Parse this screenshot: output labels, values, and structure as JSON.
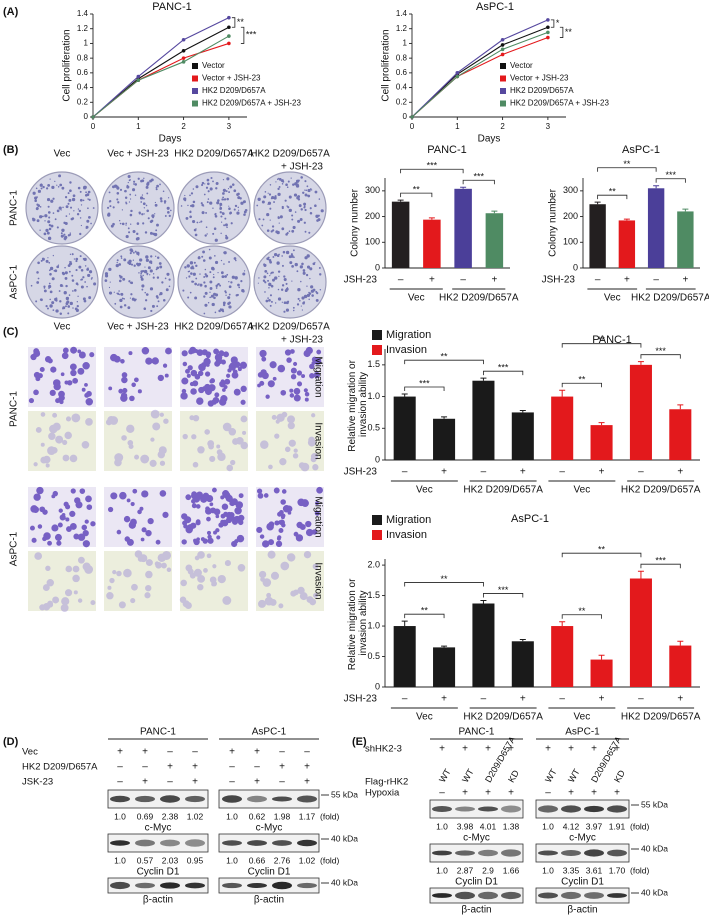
{
  "figure": {
    "panel_labels": [
      "(A)",
      "(B)",
      "(C)",
      "(D)",
      "(E)"
    ],
    "colony": {
      "columns": [
        [
          "Vec"
        ],
        [
          "Vec + JSH-23"
        ],
        [
          "HK2 D209/D657A"
        ],
        [
          "HK2 D209/D657A",
          "+ JSH-23"
        ]
      ],
      "rows": [
        "PANC-1",
        "AsPC-1"
      ]
    },
    "transwell": {
      "columns": [
        [
          "Vec"
        ],
        [
          "Vec + JSH-23"
        ],
        [
          "HK2 D209/D657A"
        ],
        [
          "HK2 D209/D657A",
          "+ JSH-23"
        ]
      ],
      "cell_lines": [
        "PANC-1",
        "AsPC-1"
      ],
      "assays": [
        "Migration",
        "Invasion"
      ]
    },
    "blot_d": {
      "cell_lines": [
        "PANC-1",
        "AsPC-1"
      ],
      "conditions": [
        {
          "label": "Vec",
          "signs": [
            "+",
            "+",
            "–",
            "–",
            "+",
            "+",
            "–",
            "–"
          ]
        },
        {
          "label": "HK2 D209/D657A",
          "signs": [
            "–",
            "–",
            "+",
            "+",
            "–",
            "–",
            "+",
            "+"
          ]
        },
        {
          "label": "JSK-23",
          "signs": [
            "–",
            "+",
            "–",
            "+",
            "–",
            "+",
            "–",
            "+"
          ]
        }
      ],
      "blots": [
        {
          "protein": "c-Myc",
          "marker": "55 kDa",
          "fold": [
            [
              "1.0",
              "0.69",
              "2.38",
              "1.02"
            ],
            [
              "1.0",
              "0.62",
              "1.98",
              "1.17"
            ]
          ]
        },
        {
          "protein": "Cyclin D1",
          "marker": "40 kDa",
          "fold": [
            [
              "1.0",
              "0.57",
              "2.03",
              "0.95"
            ],
            [
              "1.0",
              "0.66",
              "2.76",
              "1.02"
            ]
          ]
        },
        {
          "protein": "β-actin",
          "marker": "40 kDa"
        }
      ],
      "fold_unit": "(fold)"
    },
    "blot_e": {
      "cell_lines": [
        "PANC-1",
        "AsPC-1"
      ],
      "conditions": [
        {
          "label": "shHK2-3",
          "signs": [
            "+",
            "+",
            "+",
            "+",
            "+",
            "+",
            "+",
            "+"
          ]
        },
        {
          "label": "Flag-rHK2",
          "signs": [
            "WT",
            "WT",
            "D209/D657A",
            "KD",
            "WT",
            "WT",
            "D209/D657A",
            "KD"
          ]
        },
        {
          "label": "Hypoxia",
          "signs": [
            "–",
            "+",
            "+",
            "+",
            "–",
            "+",
            "+",
            "+"
          ]
        }
      ],
      "blots": [
        {
          "protein": "c-Myc",
          "marker": "55 kDa",
          "fold": [
            [
              "1.0",
              "3.98",
              "4.01",
              "1.38"
            ],
            [
              "1.0",
              "4.12",
              "3.97",
              "1.91"
            ]
          ]
        },
        {
          "protein": "Cyclin D1",
          "marker": "40 kDa",
          "fold": [
            [
              "1.0",
              "2.87",
              "2.9",
              "1.66"
            ],
            [
              "1.0",
              "3.35",
              "3.61",
              "1.70"
            ]
          ]
        },
        {
          "protein": "β-actin",
          "marker": "40 kDa"
        }
      ],
      "fold_unit": "(fold)"
    }
  },
  "chart_data": [
    {
      "type": "line",
      "title": "PANC-1",
      "x_label": "Days",
      "y_label": "Cell proliferation",
      "x": [
        0,
        1,
        2,
        3
      ],
      "xlim": [
        0,
        3.4
      ],
      "xticks": [
        0,
        1,
        2,
        3
      ],
      "ylim": [
        0,
        1.4
      ],
      "yticks": [
        0,
        0.2,
        0.4,
        0.6,
        0.8,
        1,
        1.2,
        1.4
      ],
      "series": [
        {
          "name": "Vector",
          "color": "#111111",
          "values": [
            0,
            0.52,
            0.9,
            1.22
          ]
        },
        {
          "name": "Vector + JSH-23",
          "color": "#e3191c",
          "values": [
            0,
            0.5,
            0.8,
            1.0
          ]
        },
        {
          "name": "HK2 D209/D657A",
          "color": "#56489f",
          "values": [
            0,
            0.55,
            1.05,
            1.35
          ]
        },
        {
          "name": "HK2 D209/D657A + JSH-23",
          "color": "#4f8b63",
          "values": [
            0,
            0.5,
            0.75,
            1.1
          ]
        }
      ],
      "annotations": [
        "**",
        "***"
      ]
    },
    {
      "type": "line",
      "title": "AsPC-1",
      "x_label": "Days",
      "y_label": "Cell proliferation",
      "x": [
        0,
        1,
        2,
        3
      ],
      "xlim": [
        0,
        3.4
      ],
      "xticks": [
        0,
        1,
        2,
        3
      ],
      "ylim": [
        0,
        1.4
      ],
      "yticks": [
        0,
        0.2,
        0.4,
        0.6,
        0.8,
        1,
        1.2,
        1.4
      ],
      "series": [
        {
          "name": "Vector",
          "color": "#111111",
          "values": [
            0,
            0.58,
            0.98,
            1.22
          ]
        },
        {
          "name": "Vector + JSH-23",
          "color": "#e3191c",
          "values": [
            0,
            0.55,
            0.85,
            1.08
          ]
        },
        {
          "name": "HK2 D209/D657A",
          "color": "#56489f",
          "values": [
            0,
            0.6,
            1.05,
            1.32
          ]
        },
        {
          "name": "HK2 D209/D657A + JSH-23",
          "color": "#4f8b63",
          "values": [
            0,
            0.55,
            0.92,
            1.15
          ]
        }
      ],
      "annotations": [
        "*",
        "**"
      ]
    },
    {
      "type": "bar",
      "title": "PANC-1",
      "y_label": "Colony number",
      "category_label": "JSH-23",
      "categories": [
        "–",
        "+",
        "–",
        "+"
      ],
      "groups": [
        "Vec",
        "HK2 D209/D657A"
      ],
      "values": [
        258,
        188,
        308,
        213
      ],
      "errors": [
        6,
        7,
        6,
        8
      ],
      "colors": [
        "#231f20",
        "#e3191c",
        "#4b3f99",
        "#4f8b63"
      ],
      "ylim": [
        0,
        350
      ],
      "yticks": [
        0,
        100,
        200,
        300
      ],
      "annotations": [
        "**",
        "***",
        "***"
      ]
    },
    {
      "type": "bar",
      "title": "AsPC-1",
      "y_label": "Colony number",
      "category_label": "JSH-23",
      "categories": [
        "–",
        "+",
        "–",
        "+"
      ],
      "groups": [
        "Vec",
        "HK2 D209/D657A"
      ],
      "values": [
        248,
        185,
        310,
        220
      ],
      "errors": [
        8,
        5,
        10,
        9
      ],
      "colors": [
        "#231f20",
        "#e3191c",
        "#4b3f99",
        "#4f8b63"
      ],
      "ylim": [
        0,
        350
      ],
      "yticks": [
        0,
        100,
        200,
        300
      ],
      "annotations": [
        "**",
        "**",
        "***"
      ]
    },
    {
      "type": "bar",
      "title": "PANC-1",
      "y_label": "Relative migration or invasion ability",
      "category_label": "JSH-23",
      "categories": [
        "–",
        "+",
        "–",
        "+"
      ],
      "groups": [
        "Vec",
        "HK2 D209/D657A"
      ],
      "series": [
        {
          "name": "Migration",
          "color": "#1a1a1a",
          "values": [
            1.0,
            0.65,
            1.25,
            0.75
          ],
          "errors": [
            0.04,
            0.03,
            0.04,
            0.03
          ]
        },
        {
          "name": "Invasion",
          "color": "#e3191c",
          "values": [
            1.0,
            0.55,
            1.5,
            0.8
          ],
          "errors": [
            0.1,
            0.04,
            0.05,
            0.07
          ]
        }
      ],
      "ylim": [
        0,
        1.75
      ],
      "yticks": [
        0,
        0.5,
        {
          "value": 1,
          "label": "1.0"
        },
        1.5
      ],
      "annotations": [
        "***",
        "**",
        "***",
        "**",
        "**",
        "***"
      ]
    },
    {
      "type": "bar",
      "title": "AsPC-1",
      "y_label": "Relative migration or invasion ability",
      "category_label": "JSH-23",
      "categories": [
        "–",
        "+",
        "–",
        "+"
      ],
      "groups": [
        "Vec",
        "HK2 D209/D657A"
      ],
      "series": [
        {
          "name": "Migration",
          "color": "#1a1a1a",
          "values": [
            1.0,
            0.65,
            1.37,
            0.75
          ],
          "errors": [
            0.08,
            0.02,
            0.05,
            0.03
          ]
        },
        {
          "name": "Invasion",
          "color": "#e3191c",
          "values": [
            1.0,
            0.45,
            1.78,
            0.68
          ],
          "errors": [
            0.07,
            0.07,
            0.12,
            0.07
          ]
        }
      ],
      "ylim": [
        0,
        2.1
      ],
      "yticks": [
        0,
        0.5,
        {
          "value": 1,
          "label": "1.0"
        },
        1.5,
        {
          "value": 2,
          "label": "2.0"
        }
      ],
      "annotations": [
        "**",
        "**",
        "***",
        "**",
        "**",
        "***"
      ]
    }
  ]
}
